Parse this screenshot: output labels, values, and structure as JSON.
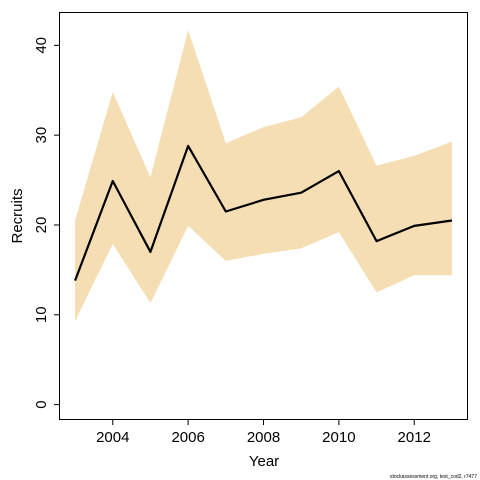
{
  "chart_data": {
    "type": "line",
    "title": "",
    "xlabel": "Year",
    "ylabel": "Recruits",
    "xlim": [
      2002.6,
      2013.4
    ],
    "ylim": [
      -1.6,
      43.6
    ],
    "x_ticks": [
      2004,
      2006,
      2008,
      2010,
      2012
    ],
    "y_ticks": [
      0,
      10,
      20,
      30,
      40
    ],
    "grid": false,
    "x": [
      2003,
      2004,
      2005,
      2006,
      2007,
      2008,
      2009,
      2010,
      2011,
      2012,
      2013
    ],
    "series": [
      {
        "values": [
          13.8,
          24.9,
          17.0,
          28.8,
          21.5,
          22.8,
          23.6,
          26.0,
          18.2,
          19.9,
          20.5
        ]
      }
    ],
    "band": {
      "lower": [
        9.3,
        17.9,
        11.3,
        19.9,
        16.0,
        16.8,
        17.4,
        19.2,
        12.5,
        14.4,
        14.4
      ],
      "upper": [
        20.5,
        34.8,
        25.3,
        41.7,
        29.1,
        30.9,
        32.0,
        35.4,
        26.6,
        27.7,
        29.3
      ]
    },
    "colors": {
      "band": "#f5deb3",
      "line": "#000000"
    }
  },
  "footer": "stockassessment.org, test_cod2, r7477"
}
